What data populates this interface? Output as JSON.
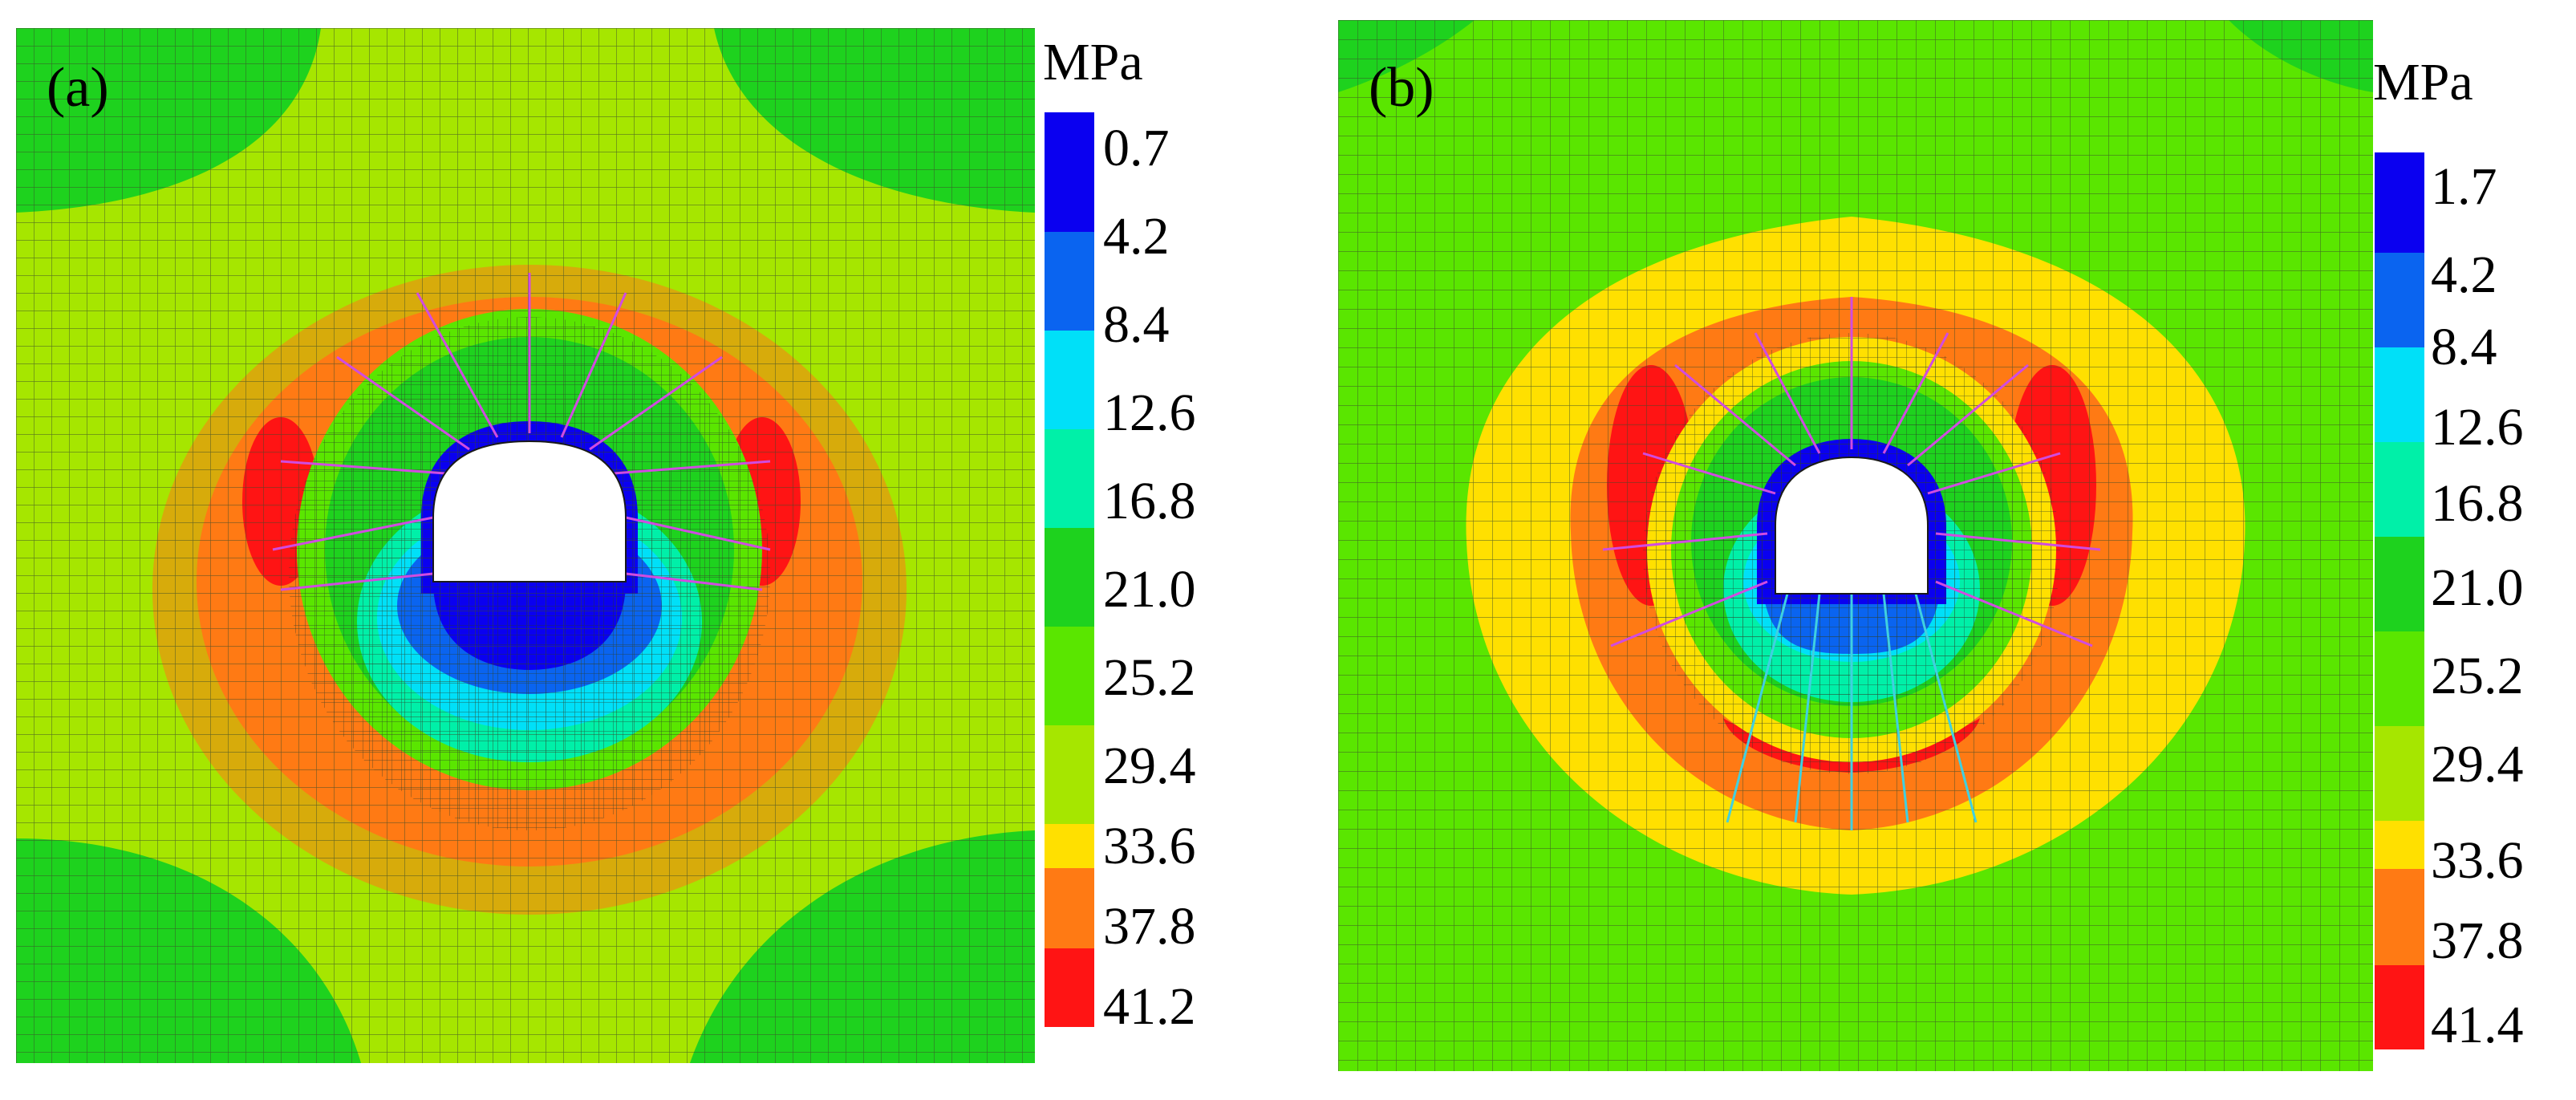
{
  "figure": {
    "panels": [
      {
        "label": "(a)",
        "unit": "MPa",
        "legend_values": [
          "0.7",
          "4.2",
          "8.4",
          "12.6",
          "16.8",
          "21.0",
          "25.2",
          "29.4",
          "33.6",
          "37.8",
          "41.2"
        ]
      },
      {
        "label": "(b)",
        "unit": "MPa",
        "legend_values": [
          "1.7",
          "4.2",
          "8.4",
          "12.6",
          "16.8",
          "21.0",
          "25.2",
          "29.4",
          "33.6",
          "37.8",
          "41.4"
        ]
      }
    ],
    "colors": {
      "band_blue": "#0a00f0",
      "band_mid_blue": "#0a64f0",
      "band_cyan": "#00e0f8",
      "band_aqua": "#00f0a8",
      "band_green": "#1ed21e",
      "band_lime": "#5ae600",
      "band_yellowgreen": "#a6e600",
      "band_yellow": "#ffe000",
      "band_orange": "#ff7a14",
      "band_red": "#ff1414",
      "mesh": "#3a4a2a",
      "bolt_magenta": "#d04ce0",
      "bolt_cyan": "#40d0e0"
    }
  }
}
